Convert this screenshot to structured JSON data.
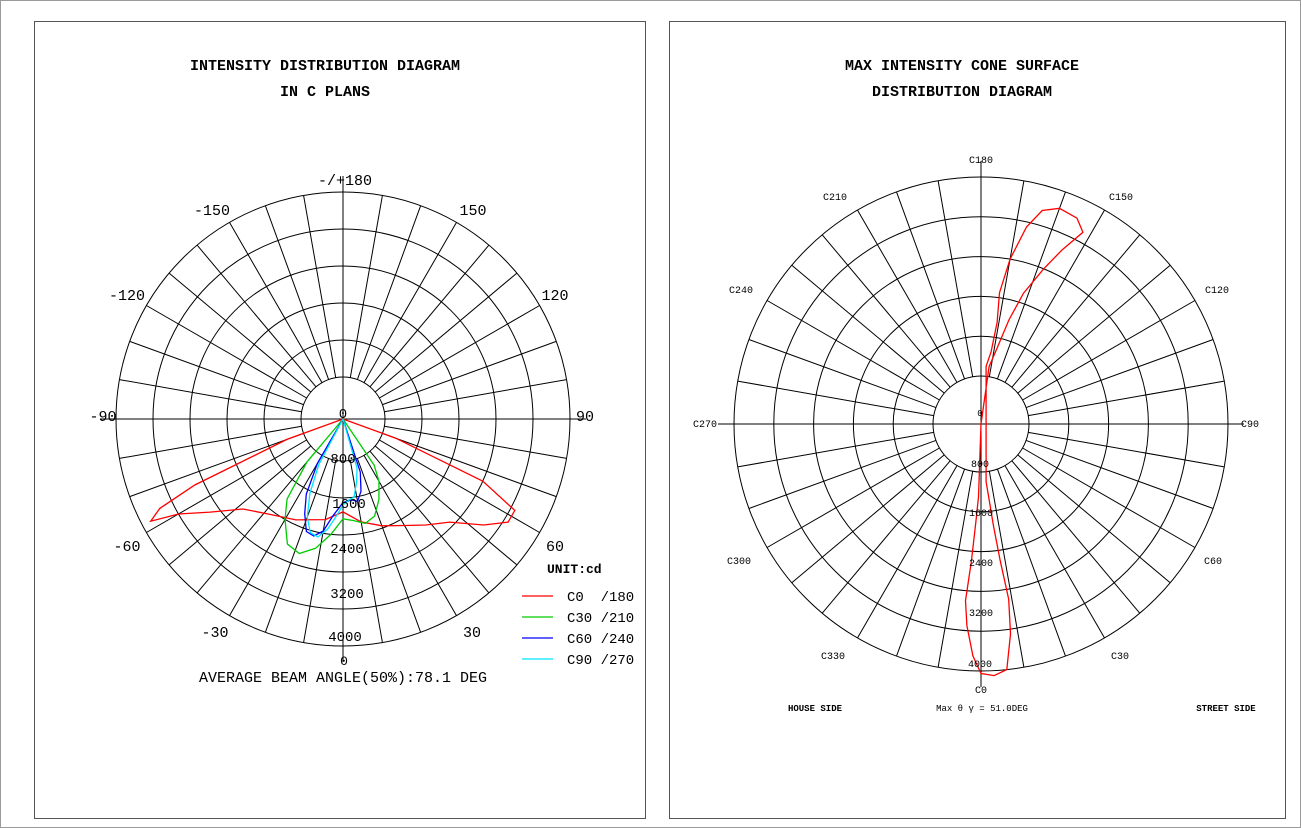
{
  "left_panel": {
    "title_line1": "INTENSITY DISTRIBUTION DIAGRAM",
    "title_line2": "IN C PLANS",
    "angle_labels": [
      "-/+180",
      "150",
      "120",
      "90",
      "60",
      "30",
      "0",
      "-30",
      "-60",
      "-90",
      "-120",
      "-150"
    ],
    "radial_labels": [
      "0",
      "800",
      "1600",
      "2400",
      "3200",
      "4000"
    ],
    "unit_label": "UNIT:cd",
    "legend": [
      {
        "label": "C0  /180",
        "color": "#ff0000"
      },
      {
        "label": "C30 /210",
        "color": "#00cc00"
      },
      {
        "label": "C60 /240",
        "color": "#0000ff"
      },
      {
        "label": "C90 /270",
        "color": "#00e5ff"
      }
    ],
    "footer": "AVERAGE BEAM ANGLE(50%):78.1 DEG"
  },
  "right_panel": {
    "title_line1": "MAX INTENSITY CONE SURFACE",
    "title_line2": "DISTRIBUTION DIAGRAM",
    "angle_labels": [
      "C180",
      "C150",
      "C120",
      "C90",
      "C60",
      "C30",
      "C0",
      "C330",
      "C300",
      "C270",
      "C240",
      "C210"
    ],
    "radial_labels": [
      "0",
      "800",
      "1600",
      "2400",
      "3200",
      "4000"
    ],
    "house_side": "HOUSE SIDE",
    "street_side": "STREET SIDE",
    "max_label": "Max θ γ = 51.0DEG"
  },
  "chart_data": [
    {
      "type": "polar",
      "radial_axis": {
        "ticks": [
          0,
          800,
          1600,
          2400,
          3200,
          4000
        ],
        "max": 4000
      },
      "series": [
        {
          "name": "C0 /180",
          "color": "#ff0000",
          "points": [
            [
              -70,
              380
            ],
            [
              -66,
              2600
            ],
            [
              -64,
              3500
            ],
            [
              -62,
              3800
            ],
            [
              -60,
              3200
            ],
            [
              -55,
              2600
            ],
            [
              -48,
              2000
            ],
            [
              -38,
              1700
            ],
            [
              -25,
              1500
            ],
            [
              -10,
              1300
            ],
            [
              0,
              1100
            ],
            [
              10,
              1350
            ],
            [
              20,
              1550
            ],
            [
              30,
              1750
            ],
            [
              38,
              2000
            ],
            [
              46,
              2300
            ],
            [
              53,
              2900
            ],
            [
              58,
              3300
            ],
            [
              62,
              3300
            ],
            [
              66,
              2400
            ],
            [
              70,
              300
            ]
          ]
        },
        {
          "name": "C30 /210",
          "color": "#00cc00",
          "points": [
            [
              -40,
              300
            ],
            [
              -35,
              1200
            ],
            [
              -30,
              1600
            ],
            [
              -24,
              2050
            ],
            [
              -18,
              2150
            ],
            [
              -12,
              1950
            ],
            [
              -6,
              1600
            ],
            [
              0,
              1250
            ],
            [
              6,
              1300
            ],
            [
              12,
              1400
            ],
            [
              18,
              1300
            ],
            [
              24,
              1000
            ],
            [
              30,
              650
            ],
            [
              34,
              300
            ]
          ]
        },
        {
          "name": "C60 /240",
          "color": "#0000ff",
          "points": [
            [
              -30,
              200
            ],
            [
              -26,
              900
            ],
            [
              -22,
              1300
            ],
            [
              -18,
              1650
            ],
            [
              -14,
              1700
            ],
            [
              -10,
              1550
            ],
            [
              -6,
              1200
            ],
            [
              0,
              900
            ],
            [
              6,
              850
            ],
            [
              10,
              900
            ],
            [
              14,
              700
            ],
            [
              18,
              300
            ]
          ]
        },
        {
          "name": "C90 /270",
          "color": "#00e5ff",
          "points": [
            [
              -28,
              200
            ],
            [
              -24,
              850
            ],
            [
              -20,
              1350
            ],
            [
              -16,
              1650
            ],
            [
              -12,
              1700
            ],
            [
              -8,
              1500
            ],
            [
              -4,
              1200
            ],
            [
              0,
              950
            ],
            [
              4,
              850
            ],
            [
              8,
              800
            ],
            [
              12,
              500
            ],
            [
              16,
              200
            ]
          ]
        }
      ]
    },
    {
      "type": "polar",
      "radial_axis": {
        "ticks": [
          0,
          800,
          1600,
          2400,
          3200,
          4000
        ],
        "max": 4000
      },
      "series": [
        {
          "name": "C0 /180",
          "color": "#ff0000",
          "points": [
            [
              0,
              0
            ],
            [
              -2,
              500
            ],
            [
              -3,
              1000
            ],
            [
              -4,
              1800
            ],
            [
              -5,
              2600
            ],
            [
              -4,
              3100
            ],
            [
              -2,
              3700
            ],
            [
              0,
              4050
            ],
            [
              3,
              4100
            ],
            [
              6,
              4000
            ],
            [
              8,
              3300
            ],
            [
              9,
              2600
            ],
            [
              8,
              1800
            ],
            [
              7,
              1100
            ],
            [
              6,
              500
            ],
            [
              5,
              200
            ],
            [
              175,
              200
            ],
            [
              172,
              500
            ],
            [
              171,
              1100
            ],
            [
              172,
              1700
            ],
            [
              170,
              2400
            ],
            [
              167,
              3100
            ],
            [
              164,
              3500
            ],
            [
              160,
              3650
            ],
            [
              155,
              3600
            ],
            [
              152,
              3400
            ],
            [
              155,
              2900
            ],
            [
              158,
              2400
            ],
            [
              162,
              1800
            ],
            [
              165,
              1200
            ],
            [
              168,
              600
            ],
            [
              172,
              200
            ],
            [
              180,
              0
            ]
          ]
        }
      ]
    }
  ]
}
